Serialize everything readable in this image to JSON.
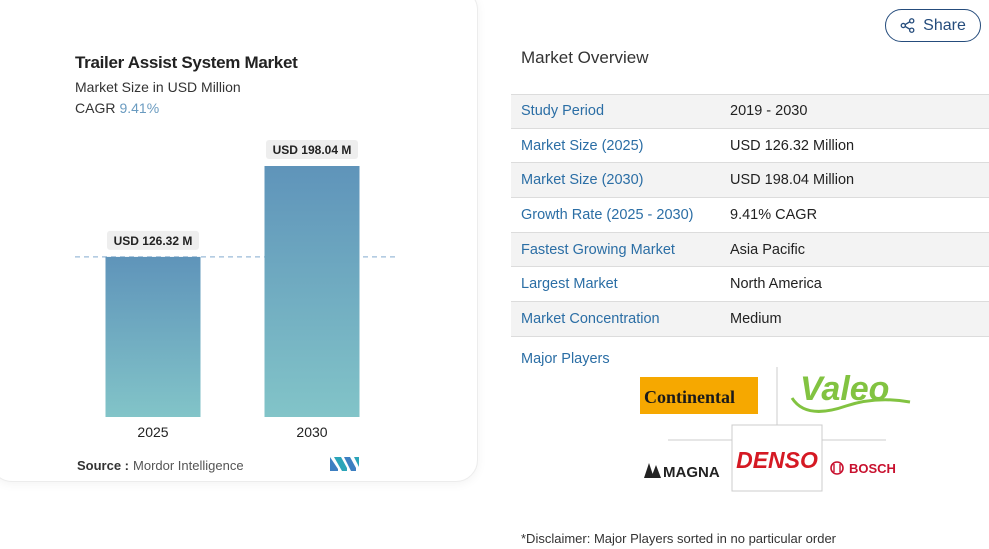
{
  "chart": {
    "title": "Trailer Assist System Market",
    "subtitle": "Market Size in USD Million",
    "cagr_label": "CAGR",
    "cagr_value": "9.41%",
    "source_label": "Source :",
    "source_value": "Mordor Intelligence"
  },
  "chart_data": {
    "type": "bar",
    "categories": [
      "2025",
      "2030"
    ],
    "values": [
      126.32,
      198.04
    ],
    "data_labels": [
      "USD 126.32 M",
      "USD 198.04 M"
    ],
    "title": "Trailer Assist System Market",
    "subtitle": "Market Size in USD Million",
    "xlabel": "",
    "ylabel": "",
    "ylim": [
      0,
      198.04
    ],
    "grid": false,
    "reference_line": 126.32,
    "colors": {
      "bar_top": "#5f94ba",
      "bar_bottom": "#82c4c8",
      "label_bg": "#eeeeee",
      "reference": "#9bbbd8"
    }
  },
  "share": {
    "label": "Share",
    "icon": "share-icon"
  },
  "overview": {
    "title": "Market Overview",
    "rows": [
      {
        "label": "Study Period",
        "value": "2019 - 2030"
      },
      {
        "label": "Market Size (2025)",
        "value": "USD 126.32 Million"
      },
      {
        "label": "Market Size (2030)",
        "value": "USD 198.04 Million"
      },
      {
        "label": "Growth Rate (2025 - 2030)",
        "value": "9.41% CAGR"
      },
      {
        "label": "Fastest Growing Market",
        "value": "Asia Pacific"
      },
      {
        "label": "Largest Market",
        "value": "North America"
      },
      {
        "label": "Market Concentration",
        "value": "Medium"
      }
    ]
  },
  "players": {
    "title": "Major Players",
    "logos": [
      "Continental",
      "Valeo",
      "MAGNA",
      "DENSO",
      "BOSCH"
    ]
  },
  "disclaimer": "*Disclaimer: Major Players sorted in no particular order",
  "colors": {
    "accent": "#2b6ea5",
    "share_border": "#254c7c"
  }
}
